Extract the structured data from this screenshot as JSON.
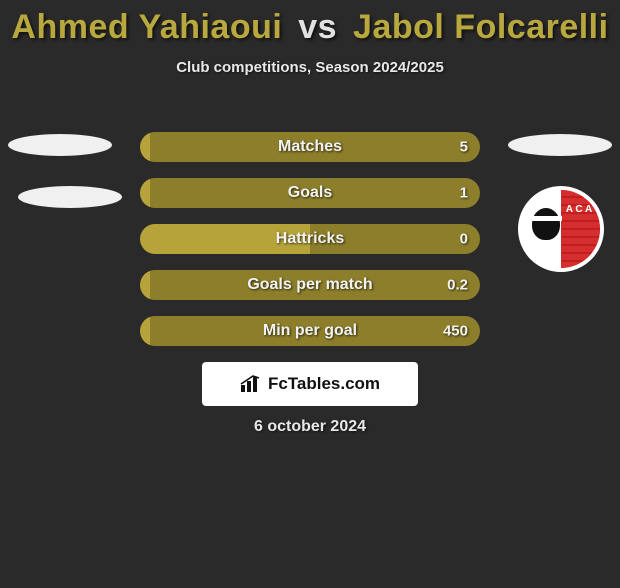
{
  "title": {
    "player1": "Ahmed Yahiaoui",
    "vs": "vs",
    "player2": "Jabol Folcarelli",
    "player1_color": "#b8a83e",
    "player2_color": "#b8a83e",
    "vs_color": "#e2e2e2",
    "fontsize": 34
  },
  "subtitle": {
    "text": "Club competitions, Season 2024/2025",
    "fontsize": 15
  },
  "colors": {
    "background": "#2a2a2a",
    "bar_left": "#b6a33a",
    "bar_right": "#8c7e2a",
    "label_text": "#f2f2f2",
    "ellipse": "#f0f0f0",
    "branding_bg": "#ffffff",
    "branding_text": "#111111"
  },
  "bars": {
    "label_fontsize": 16,
    "value_fontsize": 15,
    "height": 30,
    "radius": 15,
    "gap": 16,
    "items": [
      {
        "label": "Matches",
        "left_val": "",
        "right_val": "5",
        "left_pct": 3,
        "right_pct": 97
      },
      {
        "label": "Goals",
        "left_val": "",
        "right_val": "1",
        "left_pct": 3,
        "right_pct": 97
      },
      {
        "label": "Hattricks",
        "left_val": "",
        "right_val": "0",
        "left_pct": 50,
        "right_pct": 50
      },
      {
        "label": "Goals per match",
        "left_val": "",
        "right_val": "0.2",
        "left_pct": 3,
        "right_pct": 97
      },
      {
        "label": "Min per goal",
        "left_val": "",
        "right_val": "450",
        "left_pct": 3,
        "right_pct": 97
      }
    ]
  },
  "branding": {
    "text": "FcTables.com",
    "icon": "bar-chart-icon",
    "fontsize": 17
  },
  "date": {
    "text": "6 october 2024",
    "fontsize": 16
  },
  "club_logo": {
    "letters": "A C A",
    "primary_color": "#d62e2e",
    "secondary_color": "#ffffff"
  }
}
